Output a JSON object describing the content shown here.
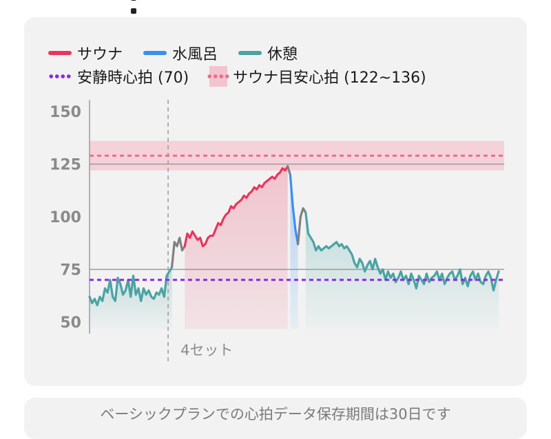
{
  "chart_data": {
    "type": "line",
    "legend": [
      {
        "label": "サウナ",
        "color": "#e8365d",
        "style": "line"
      },
      {
        "label": "水風呂",
        "color": "#3b8ef0",
        "style": "line"
      },
      {
        "label": "休憩",
        "color": "#4aa3a3",
        "style": "line"
      },
      {
        "label": "安静時心拍 (70)",
        "color": "#8a2be2",
        "style": "dotted"
      },
      {
        "label": "サウナ目安心拍 (122~136)",
        "color": "#e8708a",
        "style": "band"
      }
    ],
    "y_ticks": [
      "150",
      "125",
      "100",
      "75",
      "50"
    ],
    "ylim": [
      45,
      155
    ],
    "set_marker": {
      "label": "4セット",
      "x_index": 30
    },
    "resting_hr": 70,
    "sauna_band": [
      122,
      136
    ],
    "sauna_target_line": 129,
    "ref_lines": [
      75,
      125
    ],
    "series": [
      {
        "name": "休憩",
        "color": "#4aa3a3",
        "start_index": 0,
        "values": [
          62,
          59,
          61,
          58,
          62,
          60,
          66,
          64,
          70,
          62,
          60,
          71,
          68,
          63,
          65,
          70,
          62,
          72,
          63,
          66,
          60,
          66,
          63,
          65,
          62,
          61,
          64,
          63,
          66,
          62,
          72,
          74,
          76
        ]
      },
      {
        "name": "transition",
        "color": "#808080",
        "start_index": 32,
        "values": [
          76,
          88,
          86,
          90,
          84,
          86
        ]
      },
      {
        "name": "サウナ",
        "color": "#e8365d",
        "start_index": 37,
        "values": [
          86,
          92,
          90,
          93,
          91,
          89,
          90,
          86,
          87,
          90,
          91,
          91,
          94,
          97,
          96,
          99,
          101,
          102,
          105,
          104,
          106,
          107,
          108,
          110,
          109,
          111,
          112,
          114,
          113,
          115,
          114,
          116,
          117,
          118,
          119,
          118,
          120,
          121,
          123,
          122,
          124
        ]
      },
      {
        "name": "transition",
        "color": "#808080",
        "start_index": 77,
        "values": [
          124,
          120
        ]
      },
      {
        "name": "水風呂",
        "color": "#3b8ef0",
        "start_index": 78,
        "values": [
          120,
          105,
          94,
          87
        ]
      },
      {
        "name": "transition",
        "color": "#808080",
        "start_index": 81,
        "values": [
          87,
          100,
          104,
          102
        ]
      },
      {
        "name": "休憩",
        "color": "#4aa3a3",
        "start_index": 84,
        "values": [
          102,
          92,
          90,
          88,
          84,
          86,
          84,
          85,
          86,
          85,
          86,
          87,
          88,
          86,
          87,
          85,
          86,
          84,
          82,
          78,
          76,
          80,
          78,
          74,
          77,
          79,
          75,
          80,
          76,
          73,
          75,
          70,
          74,
          71,
          73,
          69,
          71,
          74,
          70,
          72,
          68,
          73,
          70,
          66,
          72,
          70,
          68,
          73,
          69,
          71,
          72,
          74,
          70,
          73,
          68,
          71,
          73,
          74,
          70,
          72,
          75,
          68,
          71,
          67,
          72,
          74,
          70,
          73,
          69,
          68,
          72,
          74,
          71,
          65,
          70,
          74
        ]
      }
    ]
  }
}
